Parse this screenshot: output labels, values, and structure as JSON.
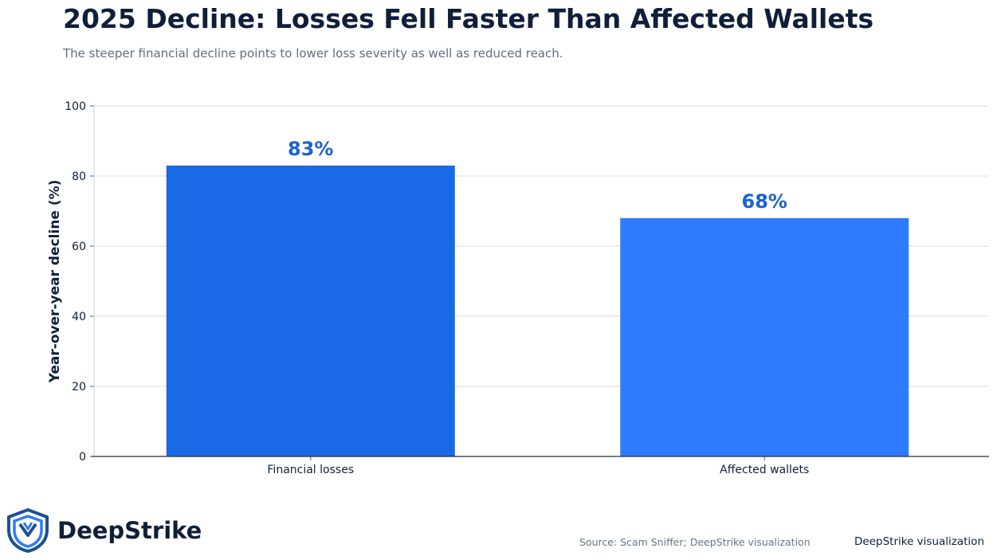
{
  "header": {
    "title": "2025 Decline: Losses Fell Faster Than Affected Wallets",
    "subtitle": "The steeper financial decline points to lower loss severity as well as reduced reach."
  },
  "chart_data": {
    "type": "bar",
    "categories": [
      "Financial losses",
      "Affected wallets"
    ],
    "values": [
      83,
      68
    ],
    "data_labels": [
      "83%",
      "68%"
    ],
    "ylabel": "Year-over-year decline (%)",
    "ylim": [
      0,
      100
    ],
    "yticks": [
      0,
      20,
      40,
      60,
      80,
      100
    ],
    "grid": true,
    "bar_colors": [
      "#1a69e6",
      "#2e7bff"
    ],
    "label_color": "#1a63d1"
  },
  "footer": {
    "logo_text": "DeepStrike",
    "logo_icon": "shield-icon",
    "source": "Source: Scam Sniffer; DeepStrike visualization",
    "credit": "DeepStrike visualization"
  }
}
